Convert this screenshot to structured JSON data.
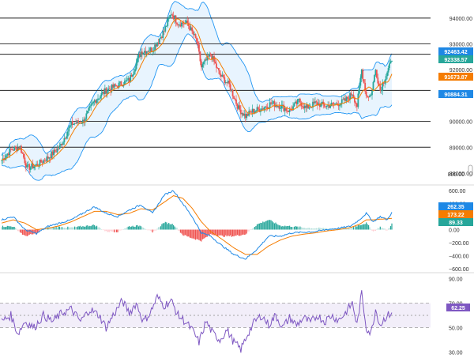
{
  "chart_data": [
    {
      "type": "candlestick",
      "panel": "price",
      "indicators": [
        "Bollinger Bands",
        "moving average"
      ],
      "y_ticks": [
        "94000.00",
        "93000.00",
        "92000.00",
        "91000.00",
        "90000.00",
        "89000.00",
        "88000.00"
      ],
      "ylim": [
        87600,
        94700
      ],
      "axis_scale_marker": "800.00",
      "horizontal_levels": [
        94000,
        93000,
        92600,
        91200,
        90000,
        89000
      ],
      "price_labels": [
        {
          "text": "92463.42",
          "value": 92463.42,
          "color": "#1e88e5"
        },
        {
          "text": "92338.57",
          "value": 92338.57,
          "color": "#26a69a"
        },
        {
          "text": "91673.87",
          "value": 91673.87,
          "color": "#f57c00"
        },
        {
          "text": "90884.31",
          "value": 90884.31,
          "color": "#1e88e5"
        }
      ],
      "close_key_points": [
        [
          0,
          88500
        ],
        [
          8,
          88900
        ],
        [
          16,
          89000
        ],
        [
          22,
          88200
        ],
        [
          30,
          88300
        ],
        [
          40,
          88600
        ],
        [
          50,
          89000
        ],
        [
          60,
          89900
        ],
        [
          70,
          90000
        ],
        [
          80,
          90800
        ],
        [
          90,
          91200
        ],
        [
          100,
          91400
        ],
        [
          110,
          91600
        ],
        [
          120,
          92700
        ],
        [
          130,
          92800
        ],
        [
          140,
          93500
        ],
        [
          146,
          94200
        ],
        [
          152,
          93800
        ],
        [
          160,
          93800
        ],
        [
          168,
          93100
        ],
        [
          172,
          92100
        ],
        [
          180,
          92600
        ],
        [
          188,
          91800
        ],
        [
          196,
          91400
        ],
        [
          204,
          90500
        ],
        [
          210,
          90200
        ],
        [
          216,
          90400
        ],
        [
          224,
          90500
        ],
        [
          232,
          90700
        ],
        [
          240,
          90600
        ],
        [
          248,
          90400
        ],
        [
          256,
          90800
        ],
        [
          262,
          90500
        ],
        [
          270,
          90700
        ],
        [
          280,
          90600
        ],
        [
          290,
          90700
        ],
        [
          296,
          90800
        ],
        [
          302,
          91100
        ],
        [
          306,
          90600
        ],
        [
          310,
          92000
        ],
        [
          314,
          91000
        ],
        [
          318,
          91000
        ],
        [
          322,
          92000
        ],
        [
          326,
          91200
        ],
        [
          330,
          91700
        ],
        [
          336,
          92338.57
        ]
      ]
    },
    {
      "type": "line",
      "panel": "macd",
      "indicator": "MACD",
      "y_ticks": [
        "600.00",
        "400.00",
        "200.00",
        "0.00",
        "−200.00",
        "−400.00",
        "−600.00"
      ],
      "ylim": [
        -660,
        660
      ],
      "price_labels": [
        {
          "text": "262.35",
          "value": 262.35,
          "color": "#1e88e5"
        },
        {
          "text": "173.22",
          "value": 173.22,
          "color": "#f57c00"
        },
        {
          "text": "89.33",
          "value": 89.33,
          "color": "#26a69a"
        }
      ],
      "macd_key_points": [
        [
          0,
          150
        ],
        [
          10,
          200
        ],
        [
          20,
          0
        ],
        [
          30,
          -60
        ],
        [
          40,
          50
        ],
        [
          50,
          100
        ],
        [
          60,
          150
        ],
        [
          70,
          250
        ],
        [
          80,
          350
        ],
        [
          90,
          250
        ],
        [
          100,
          200
        ],
        [
          110,
          300
        ],
        [
          120,
          380
        ],
        [
          130,
          250
        ],
        [
          140,
          530
        ],
        [
          148,
          600
        ],
        [
          156,
          400
        ],
        [
          164,
          200
        ],
        [
          172,
          -50
        ],
        [
          180,
          -100
        ],
        [
          190,
          -250
        ],
        [
          200,
          -380
        ],
        [
          210,
          -450
        ],
        [
          220,
          -300
        ],
        [
          230,
          -100
        ],
        [
          240,
          -100
        ],
        [
          250,
          -50
        ],
        [
          260,
          -40
        ],
        [
          270,
          -30
        ],
        [
          280,
          0
        ],
        [
          290,
          20
        ],
        [
          300,
          50
        ],
        [
          308,
          150
        ],
        [
          314,
          250
        ],
        [
          320,
          120
        ],
        [
          326,
          200
        ],
        [
          332,
          150
        ],
        [
          336,
          262.35
        ]
      ],
      "signal_key_points": [
        [
          0,
          100
        ],
        [
          10,
          150
        ],
        [
          20,
          100
        ],
        [
          30,
          0
        ],
        [
          40,
          20
        ],
        [
          50,
          60
        ],
        [
          60,
          120
        ],
        [
          70,
          200
        ],
        [
          80,
          280
        ],
        [
          90,
          280
        ],
        [
          100,
          230
        ],
        [
          110,
          250
        ],
        [
          120,
          320
        ],
        [
          130,
          300
        ],
        [
          140,
          420
        ],
        [
          148,
          520
        ],
        [
          156,
          480
        ],
        [
          164,
          330
        ],
        [
          172,
          120
        ],
        [
          180,
          -30
        ],
        [
          190,
          -150
        ],
        [
          200,
          -280
        ],
        [
          210,
          -380
        ],
        [
          220,
          -380
        ],
        [
          230,
          -250
        ],
        [
          240,
          -160
        ],
        [
          250,
          -100
        ],
        [
          260,
          -70
        ],
        [
          270,
          -50
        ],
        [
          280,
          -20
        ],
        [
          290,
          0
        ],
        [
          300,
          30
        ],
        [
          308,
          80
        ],
        [
          314,
          150
        ],
        [
          320,
          150
        ],
        [
          326,
          160
        ],
        [
          332,
          165
        ],
        [
          336,
          173.22
        ]
      ]
    },
    {
      "type": "line",
      "panel": "rsi",
      "indicator": "RSI",
      "y_ticks": [
        "90.00",
        "70.00",
        "50.00",
        "30.00"
      ],
      "ylim": [
        25,
        95
      ],
      "band": [
        50,
        70
      ],
      "price_labels": [
        {
          "text": "62.25",
          "value": 62.25,
          "color": "#7e57c2"
        }
      ],
      "rsi_key_points": [
        [
          0,
          55
        ],
        [
          8,
          60
        ],
        [
          14,
          45
        ],
        [
          20,
          55
        ],
        [
          28,
          50
        ],
        [
          36,
          60
        ],
        [
          44,
          55
        ],
        [
          52,
          62
        ],
        [
          60,
          65
        ],
        [
          68,
          55
        ],
        [
          76,
          65
        ],
        [
          84,
          60
        ],
        [
          90,
          50
        ],
        [
          96,
          60
        ],
        [
          104,
          72
        ],
        [
          110,
          62
        ],
        [
          116,
          70
        ],
        [
          122,
          55
        ],
        [
          128,
          62
        ],
        [
          134,
          75
        ],
        [
          140,
          68
        ],
        [
          146,
          72
        ],
        [
          152,
          60
        ],
        [
          158,
          55
        ],
        [
          164,
          48
        ],
        [
          170,
          38
        ],
        [
          176,
          55
        ],
        [
          182,
          45
        ],
        [
          188,
          40
        ],
        [
          194,
          48
        ],
        [
          200,
          38
        ],
        [
          206,
          32
        ],
        [
          212,
          45
        ],
        [
          218,
          55
        ],
        [
          224,
          60
        ],
        [
          230,
          52
        ],
        [
          236,
          60
        ],
        [
          242,
          50
        ],
        [
          248,
          58
        ],
        [
          254,
          52
        ],
        [
          260,
          58
        ],
        [
          266,
          54
        ],
        [
          272,
          60
        ],
        [
          278,
          55
        ],
        [
          284,
          60
        ],
        [
          290,
          56
        ],
        [
          296,
          62
        ],
        [
          302,
          70
        ],
        [
          306,
          52
        ],
        [
          310,
          78
        ],
        [
          314,
          50
        ],
        [
          318,
          45
        ],
        [
          322,
          65
        ],
        [
          326,
          52
        ],
        [
          330,
          58
        ],
        [
          336,
          62.25
        ]
      ]
    }
  ]
}
